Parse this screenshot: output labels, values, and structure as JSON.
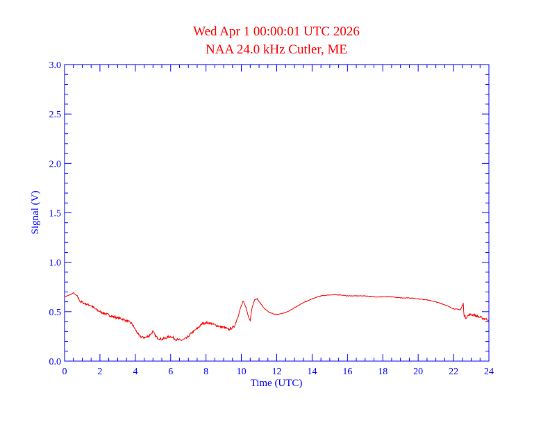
{
  "chart_data": {
    "type": "line",
    "title": "Wed Apr 1 00:00:01 UTC 2026",
    "subtitle": "NAA 24.0 kHz Cutler, ME",
    "xlabel": "Time (UTC)",
    "ylabel": "Signal (V)",
    "xlim": [
      0,
      24
    ],
    "ylim": [
      0.0,
      3.0
    ],
    "x_ticks": [
      "0",
      "2",
      "4",
      "6",
      "8",
      "10",
      "12",
      "14",
      "16",
      "18",
      "20",
      "22",
      "24"
    ],
    "y_ticks": [
      "0.0",
      "0.5",
      "1.0",
      "1.5",
      "2.0",
      "2.5",
      "3.0"
    ],
    "grid": false,
    "colors": {
      "axes": "#0000ff",
      "title": "#ff0000",
      "line": "#ff0000"
    },
    "series": [
      {
        "x": [
          0.0,
          0.3,
          0.5,
          0.7,
          0.9,
          1.2,
          1.5,
          1.8,
          2.0,
          2.3,
          2.6,
          2.9,
          3.2,
          3.5,
          3.8,
          4.0,
          4.2,
          4.4,
          4.6,
          4.8,
          5.0,
          5.2,
          5.5,
          5.8,
          6.0,
          6.3,
          6.6,
          6.9,
          7.1,
          7.3,
          7.5,
          7.8,
          8.0,
          8.3,
          8.6,
          9.0,
          9.3,
          9.6,
          9.8,
          10.0,
          10.1,
          10.25,
          10.4,
          10.5,
          10.6,
          10.75,
          10.9,
          11.1,
          11.3,
          11.6,
          12.0,
          12.5,
          13.0,
          13.5,
          14.0,
          14.5,
          15.0,
          15.3,
          15.6,
          16.0,
          16.5,
          17.0,
          17.5,
          18.0,
          18.5,
          19.0,
          19.5,
          20.0,
          20.5,
          21.0,
          21.5,
          22.0,
          22.4,
          22.55,
          22.6,
          22.7,
          22.9,
          23.1,
          23.4,
          23.7,
          24.0
        ],
        "y": [
          0.65,
          0.67,
          0.69,
          0.66,
          0.6,
          0.58,
          0.56,
          0.52,
          0.5,
          0.48,
          0.46,
          0.44,
          0.43,
          0.41,
          0.38,
          0.32,
          0.26,
          0.24,
          0.24,
          0.26,
          0.3,
          0.24,
          0.22,
          0.24,
          0.25,
          0.22,
          0.21,
          0.23,
          0.27,
          0.3,
          0.33,
          0.38,
          0.39,
          0.38,
          0.36,
          0.34,
          0.32,
          0.35,
          0.45,
          0.56,
          0.6,
          0.55,
          0.45,
          0.41,
          0.54,
          0.62,
          0.63,
          0.58,
          0.53,
          0.49,
          0.47,
          0.49,
          0.54,
          0.59,
          0.63,
          0.66,
          0.67,
          0.67,
          0.67,
          0.66,
          0.66,
          0.66,
          0.65,
          0.65,
          0.65,
          0.64,
          0.64,
          0.63,
          0.62,
          0.6,
          0.57,
          0.53,
          0.52,
          0.58,
          0.46,
          0.44,
          0.47,
          0.47,
          0.45,
          0.43,
          0.42
        ]
      }
    ]
  }
}
